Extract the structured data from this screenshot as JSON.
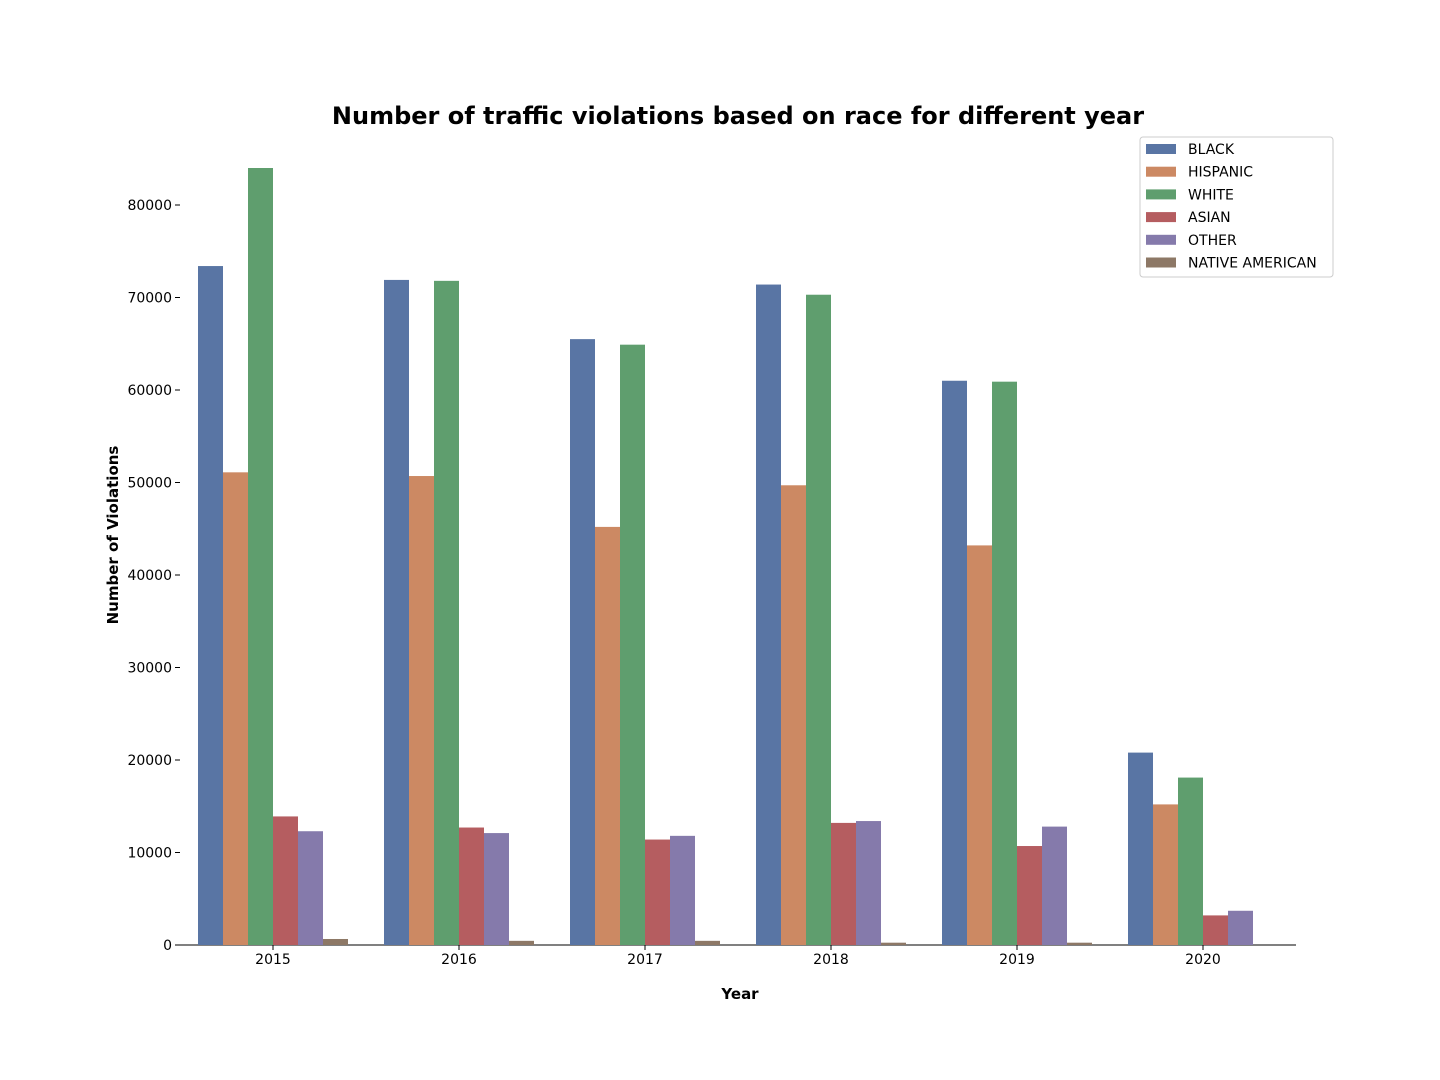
{
  "chart_data": {
    "type": "bar",
    "title": "Number of traffic violations based on race for different year",
    "xlabel": "Year",
    "ylabel": "Number of Violations",
    "categories": [
      "2015",
      "2016",
      "2017",
      "2018",
      "2019",
      "2020"
    ],
    "ylim": [
      0,
      86000
    ],
    "yticks": [
      0,
      10000,
      20000,
      30000,
      40000,
      50000,
      60000,
      70000,
      80000
    ],
    "grid": false,
    "legend_position": "top-right",
    "series": [
      {
        "name": "BLACK",
        "color": "#5975a4",
        "values": [
          73400,
          71900,
          65500,
          71400,
          61000,
          20800
        ]
      },
      {
        "name": "HISPANIC",
        "color": "#cc8963",
        "values": [
          51100,
          50700,
          45200,
          49700,
          43200,
          15200
        ]
      },
      {
        "name": "WHITE",
        "color": "#5f9e6e",
        "values": [
          84000,
          71800,
          64900,
          70300,
          60900,
          18100
        ]
      },
      {
        "name": "ASIAN",
        "color": "#b55d60",
        "values": [
          13900,
          12700,
          11400,
          13200,
          10700,
          3200
        ]
      },
      {
        "name": "OTHER",
        "color": "#857aab",
        "values": [
          12300,
          12100,
          11800,
          13400,
          12800,
          3700
        ]
      },
      {
        "name": "NATIVE AMERICAN",
        "color": "#8d7866",
        "values": [
          650,
          450,
          450,
          250,
          250,
          0
        ]
      }
    ]
  }
}
